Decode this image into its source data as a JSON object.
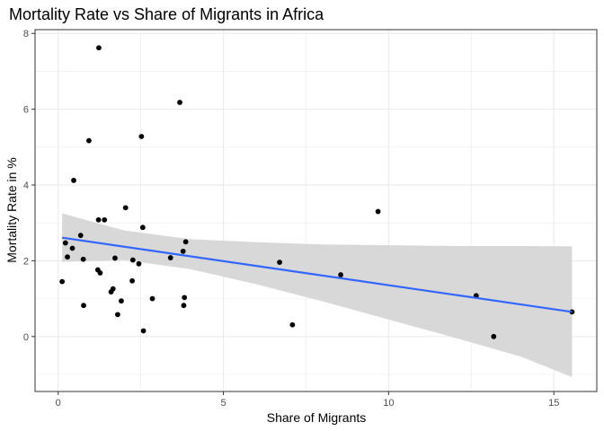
{
  "chart_data": {
    "type": "scatter",
    "title": "Mortality Rate vs Share of Migrants in Africa",
    "xlabel": "Share of Migrants",
    "ylabel": "Mortality Rate in %",
    "xlim": [
      -0.7,
      16.3
    ],
    "ylim": [
      -1.45,
      8.1
    ],
    "x_ticks": [
      0,
      5,
      10,
      15
    ],
    "y_ticks": [
      0,
      2,
      4,
      6,
      8
    ],
    "grid": true,
    "points": [
      {
        "x": 1.23,
        "y": 7.62
      },
      {
        "x": 3.68,
        "y": 6.18
      },
      {
        "x": 2.52,
        "y": 5.28
      },
      {
        "x": 0.93,
        "y": 5.17
      },
      {
        "x": 0.47,
        "y": 4.12
      },
      {
        "x": 9.68,
        "y": 3.3
      },
      {
        "x": 2.04,
        "y": 3.4
      },
      {
        "x": 1.22,
        "y": 3.08
      },
      {
        "x": 1.4,
        "y": 3.08
      },
      {
        "x": 2.56,
        "y": 2.88
      },
      {
        "x": 0.68,
        "y": 2.67
      },
      {
        "x": 0.22,
        "y": 2.47
      },
      {
        "x": 3.86,
        "y": 2.5
      },
      {
        "x": 0.43,
        "y": 2.33
      },
      {
        "x": 3.78,
        "y": 2.25
      },
      {
        "x": 0.28,
        "y": 2.1
      },
      {
        "x": 0.76,
        "y": 2.04
      },
      {
        "x": 1.72,
        "y": 2.07
      },
      {
        "x": 2.26,
        "y": 2.02
      },
      {
        "x": 3.4,
        "y": 2.08
      },
      {
        "x": 2.44,
        "y": 1.92
      },
      {
        "x": 6.7,
        "y": 1.96
      },
      {
        "x": 1.2,
        "y": 1.76
      },
      {
        "x": 1.27,
        "y": 1.68
      },
      {
        "x": 8.55,
        "y": 1.63
      },
      {
        "x": 0.12,
        "y": 1.45
      },
      {
        "x": 2.24,
        "y": 1.47
      },
      {
        "x": 1.66,
        "y": 1.26
      },
      {
        "x": 1.6,
        "y": 1.18
      },
      {
        "x": 12.65,
        "y": 1.08
      },
      {
        "x": 2.85,
        "y": 1.0
      },
      {
        "x": 3.82,
        "y": 1.03
      },
      {
        "x": 1.91,
        "y": 0.94
      },
      {
        "x": 0.77,
        "y": 0.82
      },
      {
        "x": 3.8,
        "y": 0.82
      },
      {
        "x": 1.8,
        "y": 0.58
      },
      {
        "x": 7.09,
        "y": 0.31
      },
      {
        "x": 2.58,
        "y": 0.15
      },
      {
        "x": 13.18,
        "y": 0.0
      },
      {
        "x": 15.55,
        "y": 0.65
      }
    ],
    "trend_line": {
      "x": [
        0.12,
        15.55
      ],
      "y": [
        2.61,
        0.65
      ]
    },
    "confidence_band": {
      "x": [
        0.12,
        2,
        4,
        6,
        8,
        10,
        12,
        14,
        15.55
      ],
      "lower": [
        1.97,
        2.02,
        1.78,
        1.38,
        0.93,
        0.45,
        -0.03,
        -0.53,
        -1.07
      ],
      "upper": [
        3.25,
        2.8,
        2.57,
        2.49,
        2.43,
        2.41,
        2.39,
        2.39,
        2.38
      ]
    },
    "colors": {
      "points": "#000000",
      "trend_line": "#3366ff",
      "band": "#d6d6d6",
      "grid": "#ebebeb",
      "panel_border": "#333333"
    }
  }
}
